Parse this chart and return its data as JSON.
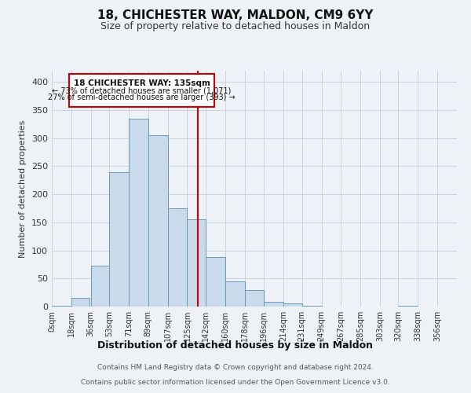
{
  "title": "18, CHICHESTER WAY, MALDON, CM9 6YY",
  "subtitle": "Size of property relative to detached houses in Maldon",
  "xlabel": "Distribution of detached houses by size in Maldon",
  "ylabel": "Number of detached properties",
  "bar_left_edges": [
    0,
    18,
    36,
    53,
    71,
    89,
    107,
    125,
    142,
    160,
    178,
    196,
    214,
    231,
    249,
    267,
    285,
    303,
    320,
    338
  ],
  "bar_widths": [
    18,
    17,
    17,
    18,
    18,
    18,
    18,
    17,
    18,
    18,
    18,
    18,
    17,
    18,
    18,
    18,
    18,
    17,
    18,
    18
  ],
  "bar_heights": [
    2,
    15,
    73,
    240,
    335,
    305,
    175,
    155,
    88,
    45,
    29,
    8,
    5,
    2,
    0,
    0,
    0,
    0,
    2,
    0
  ],
  "bar_color": "#c9daea",
  "bar_edge_color": "#6699bb",
  "tick_labels": [
    "0sqm",
    "18sqm",
    "36sqm",
    "53sqm",
    "71sqm",
    "89sqm",
    "107sqm",
    "125sqm",
    "142sqm",
    "160sqm",
    "178sqm",
    "196sqm",
    "214sqm",
    "231sqm",
    "249sqm",
    "267sqm",
    "285sqm",
    "303sqm",
    "320sqm",
    "338sqm",
    "356sqm"
  ],
  "vline_x": 135,
  "vline_color": "#cc0000",
  "annotation_title": "18 CHICHESTER WAY: 135sqm",
  "annotation_line1": "← 73% of detached houses are smaller (1,071)",
  "annotation_line2": "27% of semi-detached houses are larger (393) →",
  "annotation_box_color": "#cc0000",
  "annotation_bg": "#ffffff",
  "ylim": [
    0,
    420
  ],
  "xlim": [
    0,
    374
  ],
  "yticks": [
    0,
    50,
    100,
    150,
    200,
    250,
    300,
    350,
    400
  ],
  "grid_color": "#c8d4e0",
  "bg_color": "#eef2f7",
  "footnote1": "Contains HM Land Registry data © Crown copyright and database right 2024.",
  "footnote2": "Contains public sector information licensed under the Open Government Licence v3.0.",
  "title_fontsize": 11,
  "subtitle_fontsize": 9,
  "xlabel_fontsize": 9,
  "ylabel_fontsize": 8,
  "tick_fontsize": 7,
  "ytick_fontsize": 8,
  "footnote_fontsize": 6.5
}
